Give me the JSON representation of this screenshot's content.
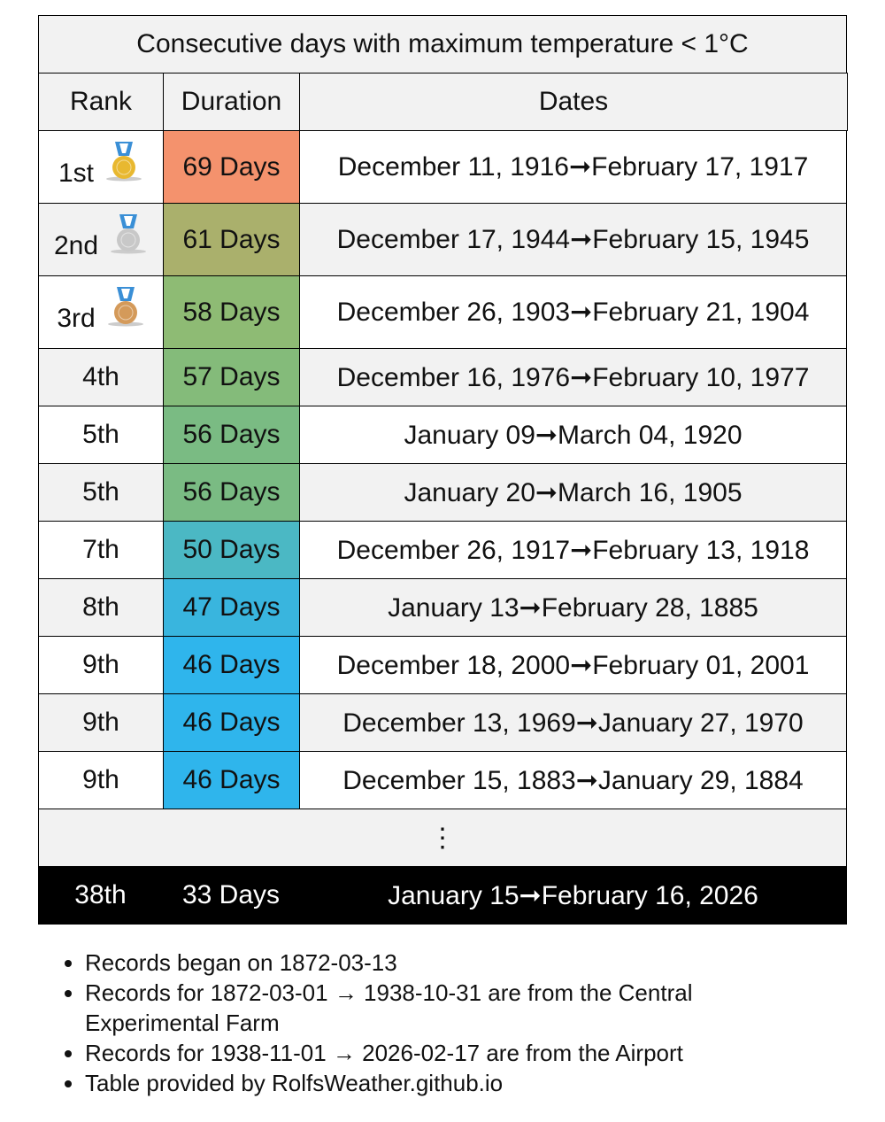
{
  "title": "Consecutive days with maximum temperature < 1°C",
  "table": {
    "header": [
      "Rank",
      "Duration",
      "Dates"
    ],
    "rows": [
      [
        "1st",
        "69 Days",
        "December 11, 1916➞February 17, 1917"
      ],
      [
        "2nd",
        "61 Days",
        "December 17, 1944➞February 15, 1945"
      ],
      [
        "3rd",
        "58 Days",
        "December 26, 1903➞February 21, 1904"
      ],
      [
        "4th",
        "57 Days",
        "December 16, 1976➞February 10, 1977"
      ],
      [
        "5th",
        "56 Days",
        "January 09➞March 04, 1920"
      ],
      [
        "5th",
        "56 Days",
        "January 20➞March 16, 1905"
      ],
      [
        "7th",
        "50 Days",
        "December 26, 1917➞February 13, 1918"
      ],
      [
        "8th",
        "47 Days",
        "January 13➞February 28, 1885"
      ],
      [
        "9th",
        "46 Days",
        "December 18, 2000➞February 01, 2001"
      ],
      [
        "9th",
        "46 Days",
        "December 13, 1969➞January 27, 1970"
      ],
      [
        "9th",
        "46 Days",
        "December 15, 1883➞January 29, 1884"
      ]
    ],
    "ellipsis": "⋮",
    "current": [
      "38th",
      "33 Days",
      "January 15➞February 16, 2026"
    ]
  },
  "notes": [
    "Records began on 1872-03-13",
    "Records for 1872-03-01 → 1938-10-31 are from the Central Experimental Farm",
    "Records for 1938-11-01 → 2026-02-17 are from the Airport",
    "Table provided by RolfsWeather.github.io"
  ]
}
